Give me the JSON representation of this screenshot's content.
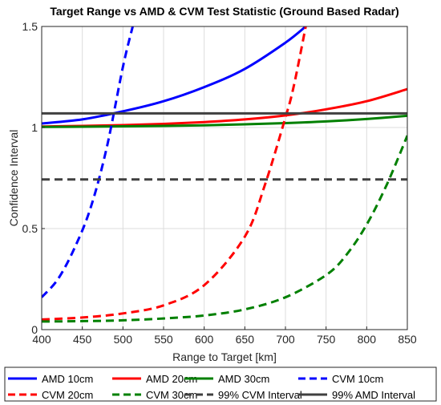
{
  "chart_data": {
    "type": "line",
    "title": "Target Range vs AMD & CVM Test Statistic (Ground Based Radar)",
    "xlabel": "Range to Target [km]",
    "ylabel": "Confidence Interval",
    "xlim": [
      400,
      850
    ],
    "ylim": [
      0,
      1.5
    ],
    "xticks": [
      "400",
      "450",
      "500",
      "550",
      "600",
      "650",
      "700",
      "750",
      "800",
      "850"
    ],
    "yticks": [
      "0",
      "0.5",
      "1",
      "1.5"
    ],
    "grid": true,
    "legend_position": "bottom",
    "series": [
      {
        "name": "AMD 10cm",
        "color": "#0000ff",
        "dash": "solid",
        "x": [
          400,
          450,
          500,
          550,
          600,
          650,
          700,
          725
        ],
        "y": [
          1.02,
          1.04,
          1.08,
          1.13,
          1.2,
          1.29,
          1.42,
          1.5
        ]
      },
      {
        "name": "AMD 20cm",
        "color": "#ff0000",
        "dash": "solid",
        "x": [
          400,
          450,
          500,
          550,
          600,
          650,
          700,
          750,
          800,
          850
        ],
        "y": [
          1.005,
          1.008,
          1.012,
          1.018,
          1.027,
          1.04,
          1.06,
          1.09,
          1.13,
          1.19
        ]
      },
      {
        "name": "AMD 30cm",
        "color": "#008000",
        "dash": "solid",
        "x": [
          400,
          450,
          500,
          550,
          600,
          650,
          700,
          750,
          800,
          850
        ],
        "y": [
          1.003,
          1.004,
          1.006,
          1.008,
          1.011,
          1.016,
          1.022,
          1.03,
          1.042,
          1.058
        ]
      },
      {
        "name": "CVM 10cm",
        "color": "#0000ff",
        "dash": "dashed",
        "x": [
          400,
          420,
          440,
          460,
          480,
          500,
          512
        ],
        "y": [
          0.16,
          0.25,
          0.4,
          0.6,
          0.9,
          1.3,
          1.5
        ]
      },
      {
        "name": "CVM 20cm",
        "color": "#ff0000",
        "dash": "dashed",
        "x": [
          400,
          450,
          500,
          550,
          600,
          650,
          675,
          700,
          710,
          725
        ],
        "y": [
          0.05,
          0.06,
          0.08,
          0.12,
          0.22,
          0.46,
          0.72,
          1.05,
          1.2,
          1.5
        ]
      },
      {
        "name": "CVM 30cm",
        "color": "#008000",
        "dash": "dashed",
        "x": [
          400,
          450,
          500,
          550,
          600,
          650,
          700,
          750,
          775,
          800,
          825,
          850
        ],
        "y": [
          0.04,
          0.042,
          0.046,
          0.055,
          0.07,
          0.1,
          0.16,
          0.27,
          0.37,
          0.52,
          0.72,
          0.96
        ]
      },
      {
        "name": "99% CVM Interval",
        "color": "#404040",
        "dash": "dashed",
        "x": [
          400,
          850
        ],
        "y": [
          0.743,
          0.743
        ]
      },
      {
        "name": "99% AMD Interval",
        "color": "#404040",
        "dash": "solid",
        "x": [
          400,
          850
        ],
        "y": [
          1.07,
          1.07
        ]
      }
    ]
  }
}
